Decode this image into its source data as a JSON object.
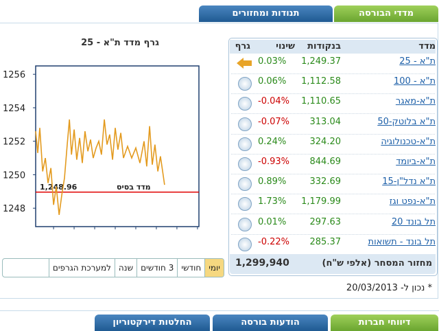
{
  "tabs": [
    "מדדי הבורסה",
    "תנודות ומחזורים"
  ],
  "chart_data": {
    "type": "line",
    "title": "גרף מדד ת\"א - 25",
    "x": [
      10.13,
      10.23,
      10.33,
      10.47,
      10.6,
      10.73,
      10.87,
      11.0,
      11.13,
      11.27,
      11.4,
      11.53,
      11.67,
      11.77,
      11.87,
      12.0,
      12.13,
      12.27,
      12.4,
      12.53,
      12.67,
      12.8,
      12.93,
      13.07,
      13.2,
      13.33,
      13.47,
      13.6,
      13.73,
      13.87,
      14.0,
      14.13,
      14.27,
      14.4,
      14.6,
      14.8,
      15.0,
      15.2,
      15.4,
      15.53,
      15.67,
      15.8,
      15.93,
      16.07,
      16.2,
      16.33,
      16.4
    ],
    "values": [
      1252.6,
      1251.3,
      1252.8,
      1250.2,
      1251.0,
      1249.5,
      1250.4,
      1248.2,
      1249.3,
      1247.6,
      1248.8,
      1249.8,
      1251.9,
      1253.3,
      1251.2,
      1252.7,
      1250.9,
      1252.2,
      1250.7,
      1252.6,
      1251.4,
      1252.1,
      1251.0,
      1251.6,
      1252.0,
      1251.2,
      1253.3,
      1251.8,
      1252.4,
      1250.9,
      1252.8,
      1251.5,
      1252.5,
      1251.0,
      1251.7,
      1251.0,
      1251.6,
      1250.7,
      1252.0,
      1250.5,
      1252.9,
      1250.6,
      1251.8,
      1250.2,
      1251.1,
      1250.0,
      1249.4
    ],
    "color": "#e39a1e",
    "xlim": [
      10.13,
      18.07
    ],
    "ylim": [
      1246.9,
      1256.5
    ],
    "xticks": [
      11,
      12,
      13,
      14,
      15,
      16,
      17,
      18
    ],
    "yticks": [
      1248,
      1250,
      1252,
      1254,
      1256
    ],
    "base_line": {
      "value": 1248.96,
      "label": "1,248.96"
    },
    "base_line_text": "מדד בסיס",
    "base_line_color": "#e00000"
  },
  "period_buttons": {
    "items": [
      "יומי",
      "חודשי",
      "3 חודשים",
      "שנה",
      "למערכת הגרפים"
    ],
    "selected": 0
  },
  "table": {
    "headers": [
      "מדד",
      "בנקודות",
      "שינוי",
      "גרף"
    ],
    "rows": [
      [
        "ת\"א - 25",
        "1,249.37",
        "0.03%"
      ],
      [
        "ת\"א - 100",
        "1,112.58",
        "0.06%"
      ],
      [
        "ת\"א-מאגר",
        "1,110.65",
        "-0.04%"
      ],
      [
        "ת\"א בלוטק-50",
        "313.04",
        "-0.07%"
      ],
      [
        "ת\"א-טכנולוגיה",
        "324.20",
        "0.24%"
      ],
      [
        "ת\"א-ביומד",
        "844.69",
        "-0.93%"
      ],
      [
        "ת\"א נדל\"ן-15",
        "332.69",
        "0.89%"
      ],
      [
        "ת\"א-נפט וגז",
        "1,179.99",
        "1.73%"
      ],
      [
        "תל בונד 20",
        "297.63",
        "0.01%"
      ],
      [
        "תל בונד - תשואות",
        "285.37",
        "-0.22%"
      ]
    ]
  },
  "turnover": {
    "label": "מחזור המסחר (אלפי ש\"ח)",
    "value": "1,299,940"
  },
  "note": "* נכון ל- 20/03/2013",
  "bottom_tabs": [
    "דיווחי חברות",
    "הודעות בורסה",
    "החלטות דירקטוריון"
  ]
}
